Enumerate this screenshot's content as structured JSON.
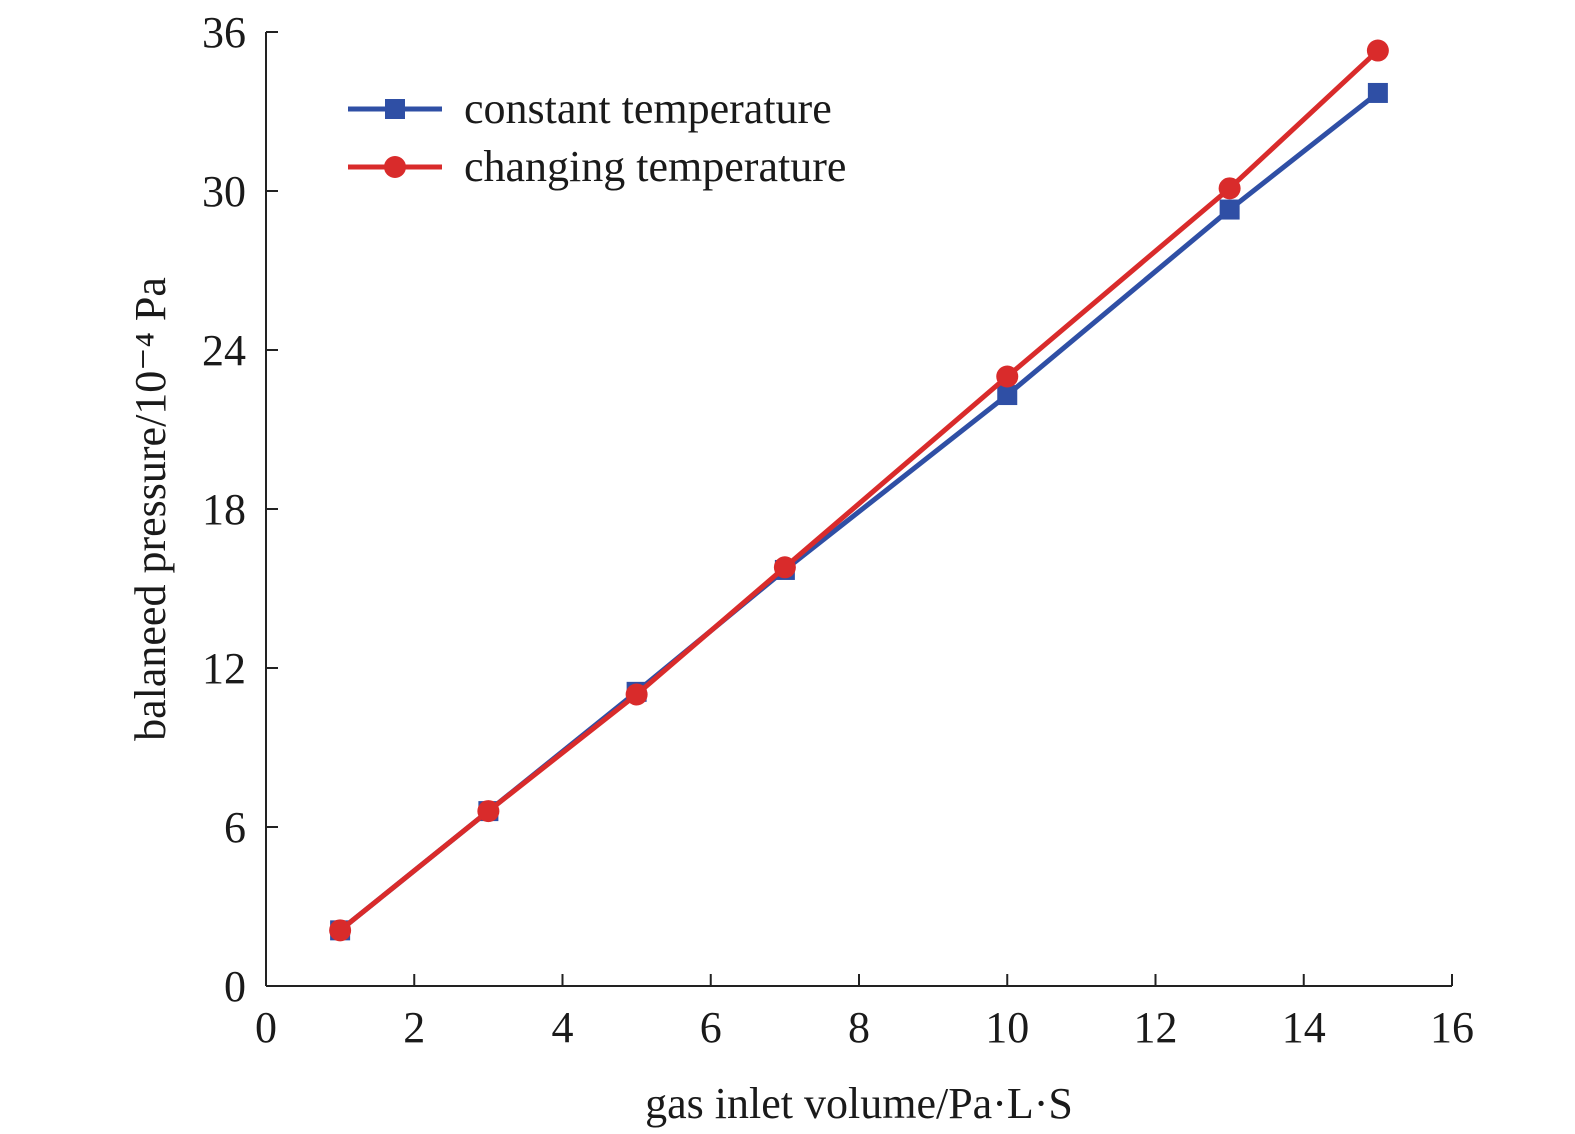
{
  "chart_data": {
    "type": "line",
    "xlabel": "gas inlet volume/Pa·L·S",
    "ylabel": "balaneed pressure/10⁻⁴ Pa",
    "xlim": [
      0,
      16
    ],
    "ylim": [
      0,
      36
    ],
    "xticks": [
      0,
      2,
      4,
      6,
      8,
      10,
      12,
      14,
      16
    ],
    "yticks": [
      0,
      6,
      12,
      18,
      24,
      30,
      36
    ],
    "grid": false,
    "legend_position": "top-left",
    "series": [
      {
        "name": "constant temperature",
        "color": "#2f4fa5",
        "marker": "square",
        "x": [
          1,
          3,
          5,
          7,
          10,
          13,
          15
        ],
        "y": [
          2.1,
          6.6,
          11.1,
          15.7,
          22.3,
          29.3,
          33.7
        ]
      },
      {
        "name": "changing temperature",
        "color": "#d92b2b",
        "marker": "circle",
        "x": [
          1,
          3,
          5,
          7,
          10,
          13,
          15
        ],
        "y": [
          2.1,
          6.6,
          11.0,
          15.8,
          23.0,
          30.1,
          35.3
        ]
      }
    ]
  }
}
